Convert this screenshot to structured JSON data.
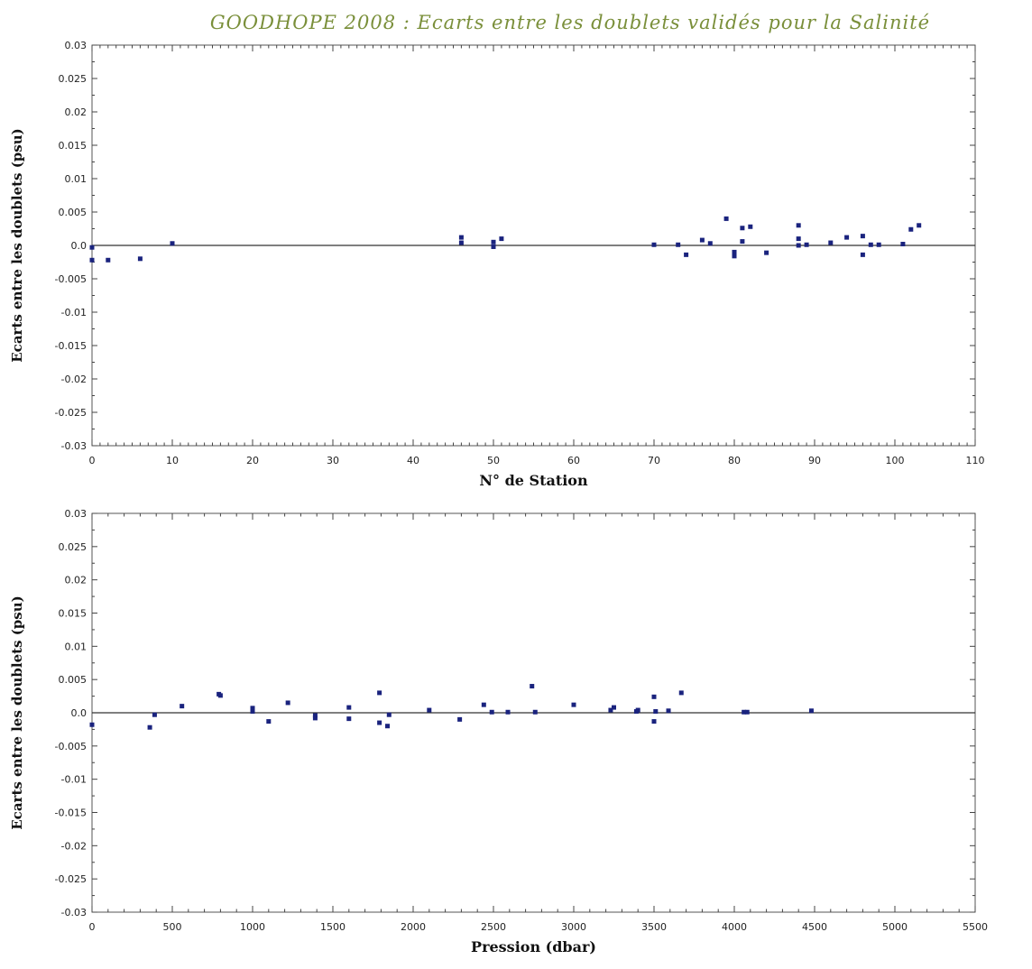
{
  "chart_title": "GOODHOPE 2008 : Ecarts entre les doublets validés pour la Salinité",
  "chart_data": [
    {
      "type": "scatter",
      "title": "GOODHOPE 2008 : Ecarts entre les doublets validés pour la Salinité",
      "xlabel": "N° de Station",
      "ylabel": "Ecarts entre les doublets (psu)",
      "xlim": [
        0,
        110
      ],
      "ylim": [
        -0.03,
        0.03
      ],
      "x_ticks": [
        0,
        10,
        20,
        30,
        40,
        50,
        60,
        70,
        80,
        90,
        100,
        110
      ],
      "y_ticks": [
        0.03,
        0.025,
        0.02,
        0.015,
        0.01,
        0.005,
        0.0,
        -0.005,
        -0.01,
        -0.015,
        -0.02,
        -0.025,
        -0.03
      ],
      "y_tick_labels": [
        "0.03",
        "0.025",
        "0.02",
        "0.015",
        "0.01",
        "0.005",
        "0.0",
        "-0.005",
        "-0.01",
        "-0.015",
        "-0.02",
        "-0.025",
        "-0.03"
      ],
      "grid": false,
      "reference_line_y": 0,
      "points": [
        {
          "x": 0,
          "y": -0.0003
        },
        {
          "x": 0,
          "y": -0.0022
        },
        {
          "x": 2,
          "y": -0.0022
        },
        {
          "x": 6,
          "y": -0.002
        },
        {
          "x": 10,
          "y": 0.0003
        },
        {
          "x": 46,
          "y": 0.0012
        },
        {
          "x": 46,
          "y": 0.0004
        },
        {
          "x": 50,
          "y": 0.0005
        },
        {
          "x": 50,
          "y": -0.0002
        },
        {
          "x": 51,
          "y": 0.001
        },
        {
          "x": 70,
          "y": 0.0001
        },
        {
          "x": 73,
          "y": 0.0001
        },
        {
          "x": 74,
          "y": -0.0014
        },
        {
          "x": 76,
          "y": 0.0008
        },
        {
          "x": 77,
          "y": 0.0003
        },
        {
          "x": 79,
          "y": 0.004
        },
        {
          "x": 80,
          "y": -0.001
        },
        {
          "x": 80,
          "y": -0.0016
        },
        {
          "x": 81,
          "y": 0.0026
        },
        {
          "x": 81,
          "y": 0.0006
        },
        {
          "x": 82,
          "y": 0.0028
        },
        {
          "x": 84,
          "y": -0.0011
        },
        {
          "x": 88,
          "y": 0.003
        },
        {
          "x": 88,
          "y": 0.001
        },
        {
          "x": 88,
          "y": 0.0
        },
        {
          "x": 89,
          "y": 0.0001
        },
        {
          "x": 92,
          "y": 0.0004
        },
        {
          "x": 94,
          "y": 0.0012
        },
        {
          "x": 96,
          "y": 0.0014
        },
        {
          "x": 96,
          "y": -0.0014
        },
        {
          "x": 97,
          "y": 0.0001
        },
        {
          "x": 98,
          "y": 0.0001
        },
        {
          "x": 101,
          "y": 0.0002
        },
        {
          "x": 102,
          "y": 0.0024
        },
        {
          "x": 103,
          "y": 0.003
        }
      ]
    },
    {
      "type": "scatter",
      "title": "",
      "xlabel": "Pression (dbar)",
      "ylabel": "Ecarts entre les doublets (psu)",
      "xlim": [
        0,
        5500
      ],
      "ylim": [
        -0.03,
        0.03
      ],
      "x_ticks": [
        0,
        500,
        1000,
        1500,
        2000,
        2500,
        3000,
        3500,
        4000,
        4500,
        5000,
        5500
      ],
      "y_ticks": [
        0.03,
        0.025,
        0.02,
        0.015,
        0.01,
        0.005,
        0.0,
        -0.005,
        -0.01,
        -0.015,
        -0.02,
        -0.025,
        -0.03
      ],
      "y_tick_labels": [
        "0.03",
        "0.025",
        "0.02",
        "0.015",
        "0.01",
        "0.005",
        "0.0",
        "-0.005",
        "-0.01",
        "-0.015",
        "-0.02",
        "-0.025",
        "-0.03"
      ],
      "grid": false,
      "reference_line_y": 0,
      "points": [
        {
          "x": 0,
          "y": -0.0018
        },
        {
          "x": 360,
          "y": -0.0022
        },
        {
          "x": 390,
          "y": -0.0003
        },
        {
          "x": 560,
          "y": 0.001
        },
        {
          "x": 790,
          "y": 0.0028
        },
        {
          "x": 800,
          "y": 0.0026
        },
        {
          "x": 1000,
          "y": 0.0007
        },
        {
          "x": 1000,
          "y": 0.0002
        },
        {
          "x": 1100,
          "y": -0.0013
        },
        {
          "x": 1220,
          "y": 0.0015
        },
        {
          "x": 1390,
          "y": -0.0004
        },
        {
          "x": 1390,
          "y": -0.0008
        },
        {
          "x": 1600,
          "y": 0.0008
        },
        {
          "x": 1600,
          "y": -0.0009
        },
        {
          "x": 1790,
          "y": 0.003
        },
        {
          "x": 1790,
          "y": -0.0015
        },
        {
          "x": 1840,
          "y": -0.002
        },
        {
          "x": 1850,
          "y": -0.0003
        },
        {
          "x": 2100,
          "y": 0.0004
        },
        {
          "x": 2290,
          "y": -0.001
        },
        {
          "x": 2440,
          "y": 0.0012
        },
        {
          "x": 2490,
          "y": 0.0001
        },
        {
          "x": 2590,
          "y": 0.0001
        },
        {
          "x": 2740,
          "y": 0.004
        },
        {
          "x": 2760,
          "y": 0.0001
        },
        {
          "x": 3000,
          "y": 0.0012
        },
        {
          "x": 3230,
          "y": 0.0004
        },
        {
          "x": 3250,
          "y": 0.0008
        },
        {
          "x": 3390,
          "y": 0.0002
        },
        {
          "x": 3400,
          "y": 0.0004
        },
        {
          "x": 3500,
          "y": 0.0024
        },
        {
          "x": 3500,
          "y": -0.0013
        },
        {
          "x": 3510,
          "y": 0.0002
        },
        {
          "x": 3590,
          "y": 0.0003
        },
        {
          "x": 3670,
          "y": 0.003
        },
        {
          "x": 4060,
          "y": 0.0001
        },
        {
          "x": 4080,
          "y": 0.0001
        },
        {
          "x": 4480,
          "y": 0.0003
        }
      ]
    }
  ]
}
